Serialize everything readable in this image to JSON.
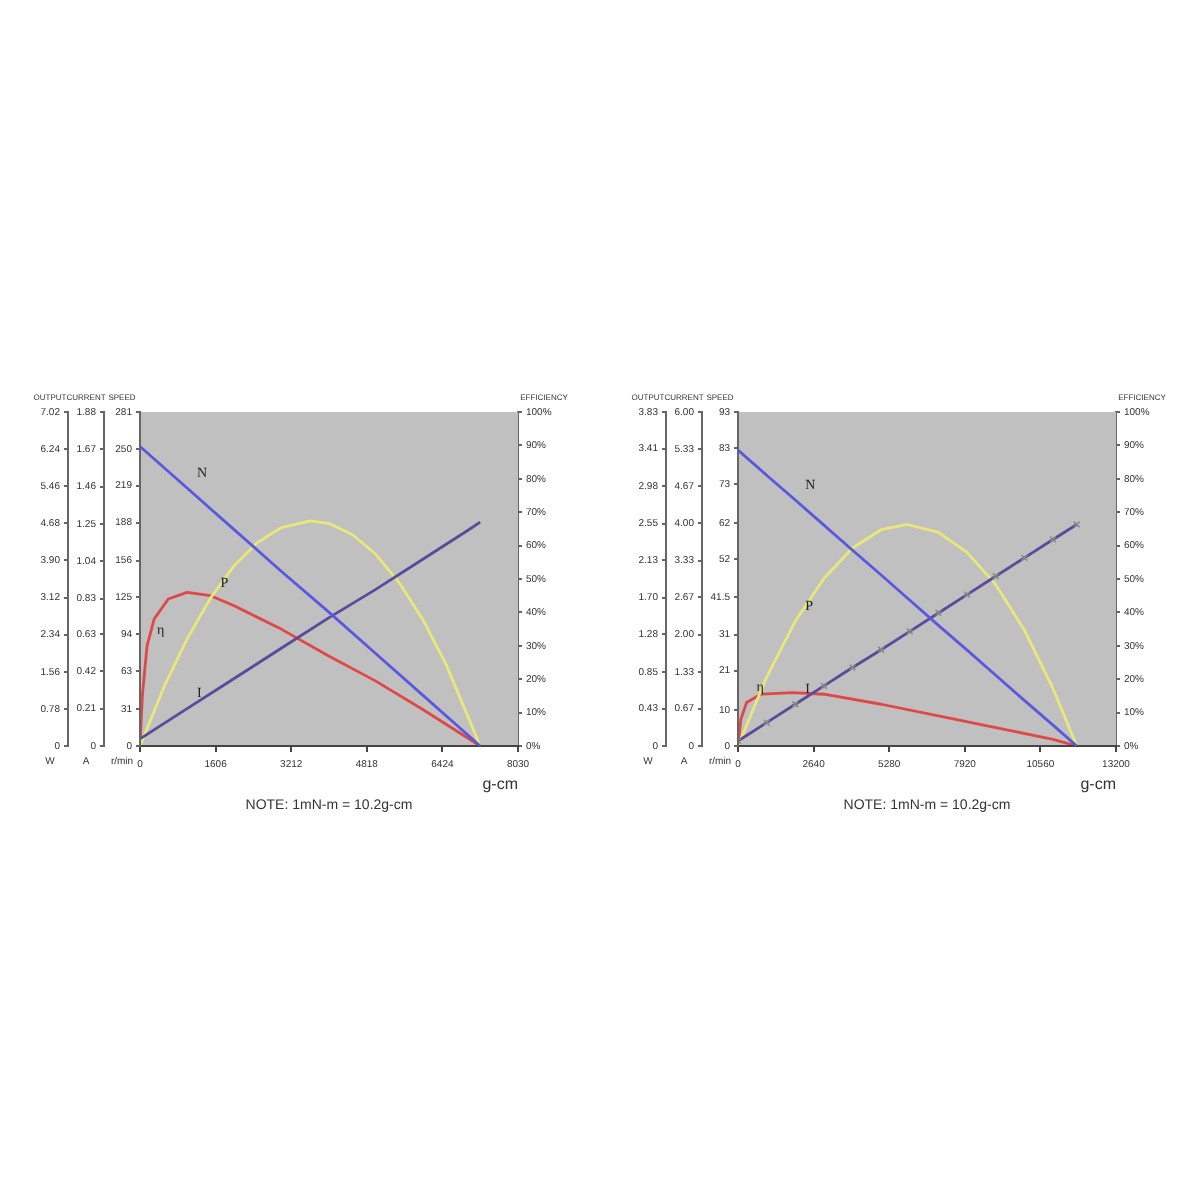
{
  "chart_data": [
    {
      "type": "line",
      "xlabel": "g-cm",
      "ylabel": "OUTPUT",
      "y2label": "EFFICIENCY",
      "y3label": "CURRENT",
      "xlim": [
        0,
        8030
      ],
      "xticks": [
        0,
        1606,
        3212,
        4818,
        6424,
        8030
      ],
      "ylim": [
        0,
        7.02
      ],
      "yticks": [
        0,
        0.78,
        1.56,
        2.34,
        3.12,
        {
          "value": 3.9,
          "label": "3.90"
        },
        4.68,
        5.46,
        6.24,
        7.02
      ],
      "y2lim": [
        0,
        100
      ],
      "y2ticks": [
        {
          "value": 0,
          "label": "0%"
        },
        {
          "value": 10,
          "label": "10%"
        },
        {
          "value": 20,
          "label": "20%"
        },
        {
          "value": 30,
          "label": "30%"
        },
        {
          "value": 40,
          "label": "40%"
        },
        {
          "value": 50,
          "label": "50%"
        },
        {
          "value": 60,
          "label": "60%"
        },
        {
          "value": 70,
          "label": "70%"
        },
        {
          "value": 80,
          "label": "80%"
        },
        {
          "value": 90,
          "label": "90%"
        },
        {
          "value": 100,
          "label": "100%"
        }
      ],
      "y3lim": [
        0,
        1.88
      ],
      "y3ticks": [
        0,
        0.21,
        0.42,
        0.63,
        0.83,
        1.04,
        1.25,
        1.46,
        1.67,
        1.88
      ],
      "grid": false,
      "legend": false,
      "marker": "none",
      "annotations": [
        "W",
        "A",
        "NOTE: 1mN-m = 10.2g-cm"
      ],
      "series": [
        {
          "name": "I",
          "color": "#5a4a9a",
          "axis": "y3",
          "x": [
            0,
            1000,
            2000,
            3000,
            4000,
            5000,
            6000,
            7000,
            7227
          ],
          "values": [
            0.04,
            0.21,
            0.38,
            0.55,
            0.72,
            0.88,
            1.05,
            1.22,
            1.26
          ]
        },
        {
          "name": "P",
          "color": "#e8e878",
          "x": [
            0,
            500,
            1000,
            1500,
            2000,
            2500,
            3000,
            3615,
            4000,
            4500,
            5000,
            5500,
            6000,
            6500,
            7227
          ],
          "values": [
            0,
            1.22,
            2.25,
            3.11,
            3.79,
            4.28,
            4.59,
            4.73,
            4.68,
            4.45,
            4.04,
            3.44,
            2.67,
            1.72,
            0
          ]
        },
        {
          "name": "η",
          "color": "#e04848",
          "axis": "y2",
          "x": [
            0,
            50,
            150,
            300,
            600,
            1000,
            1500,
            2000,
            3000,
            4000,
            5000,
            6000,
            7227
          ],
          "values": [
            0,
            15,
            30,
            38,
            44,
            46,
            45,
            42,
            35,
            27,
            19.5,
            11,
            0
          ]
        }
      ]
    },
    {
      "type": "line",
      "ylabel": "SPEED",
      "tick_labels": "y",
      "xlim": [
        0,
        8030
      ],
      "ylim": [
        0,
        281
      ],
      "yticks": [
        0,
        31,
        63,
        94,
        125,
        156,
        188,
        219,
        250,
        281
      ],
      "grid": false,
      "legend": false,
      "marker": "none",
      "annotations": [
        "r/min"
      ],
      "series": [
        {
          "name": "N",
          "color": "#5858e0",
          "x": [
            0,
            1000,
            2000,
            3000,
            4000,
            5000,
            6000,
            7000,
            7227
          ],
          "values": [
            252,
            217,
            182,
            147,
            113,
            78,
            43,
            8,
            0
          ]
        }
      ]
    },
    {
      "type": "line",
      "xlabel": "g-cm",
      "ylabel": "OUTPUT",
      "y2label": "EFFICIENCY",
      "y3label": "CURRENT",
      "xlim": [
        0,
        13200
      ],
      "xticks": [
        0,
        2640,
        5280,
        7920,
        10560,
        13200
      ],
      "ylim": [
        0,
        3.83
      ],
      "yticks": [
        0,
        0.43,
        0.85,
        1.28,
        {
          "value": 1.7,
          "label": "1.70"
        },
        2.13,
        2.55,
        2.98,
        3.41,
        3.83
      ],
      "y2lim": [
        0,
        100
      ],
      "y2ticks": [
        {
          "value": 0,
          "label": "0%"
        },
        {
          "value": 10,
          "label": "10%"
        },
        {
          "value": 20,
          "label": "20%"
        },
        {
          "value": 30,
          "label": "30%"
        },
        {
          "value": 40,
          "label": "40%"
        },
        {
          "value": 50,
          "label": "50%"
        },
        {
          "value": 60,
          "label": "60%"
        },
        {
          "value": 70,
          "label": "70%"
        },
        {
          "value": 80,
          "label": "80%"
        },
        {
          "value": 90,
          "label": "90%"
        },
        {
          "value": 100,
          "label": "100%"
        }
      ],
      "y3lim": [
        0,
        6
      ],
      "y3ticks": [
        0,
        0.67,
        1.33,
        {
          "value": 2,
          "label": "2.00"
        },
        2.67,
        3.33,
        {
          "value": 4,
          "label": "4.00"
        },
        4.67,
        5.33,
        {
          "value": 6,
          "label": "6.00"
        }
      ],
      "grid": false,
      "legend": false,
      "marker": "none",
      "annotations": [
        "W",
        "A",
        "NOTE: 1mN-m = 10.2g-cm"
      ],
      "series": [
        {
          "name": "I",
          "color": "#5a4a9a",
          "axis": "y3",
          "marker": "cross",
          "x": [
            0,
            1000,
            2000,
            3000,
            4000,
            5000,
            6000,
            7000,
            8000,
            9000,
            10000,
            11000,
            11830
          ],
          "values": [
            0.09,
            0.42,
            0.75,
            1.08,
            1.41,
            1.73,
            2.06,
            2.39,
            2.72,
            3.05,
            3.38,
            3.71,
            3.98
          ]
        },
        {
          "name": "P",
          "color": "#e8e878",
          "x": [
            0,
            1000,
            2000,
            3000,
            4000,
            5000,
            5915,
            7000,
            8000,
            9000,
            10000,
            11000,
            11830
          ],
          "values": [
            0,
            0.79,
            1.43,
            1.92,
            2.27,
            2.48,
            2.54,
            2.45,
            2.22,
            1.85,
            1.33,
            0.66,
            0
          ]
        },
        {
          "name": "η",
          "color": "#e04848",
          "axis": "y2",
          "x": [
            0,
            100,
            300,
            800,
            1900,
            3000,
            5000,
            7000,
            9000,
            11000,
            11830
          ],
          "values": [
            0,
            8,
            13,
            15.5,
            16,
            15.5,
            12.5,
            9,
            5.5,
            2,
            0
          ]
        }
      ]
    },
    {
      "type": "line",
      "ylabel": "SPEED",
      "tick_labels": "y",
      "xlim": [
        0,
        13200
      ],
      "ylim": [
        0,
        93
      ],
      "yticks": [
        0,
        10,
        21,
        31,
        41.5,
        52,
        62,
        73,
        83,
        93
      ],
      "grid": false,
      "legend": false,
      "marker": "none",
      "annotations": [
        "r/min"
      ],
      "series": [
        {
          "name": "N",
          "color": "#5858e0",
          "x": [
            0,
            1000,
            2000,
            3000,
            4000,
            5000,
            6000,
            7000,
            8000,
            9000,
            10000,
            11000,
            11830
          ],
          "values": [
            82.4,
            75.4,
            68.5,
            61.5,
            54.5,
            47.6,
            40.6,
            33.6,
            26.7,
            19.7,
            12.7,
            5.8,
            0
          ]
        }
      ]
    }
  ]
}
